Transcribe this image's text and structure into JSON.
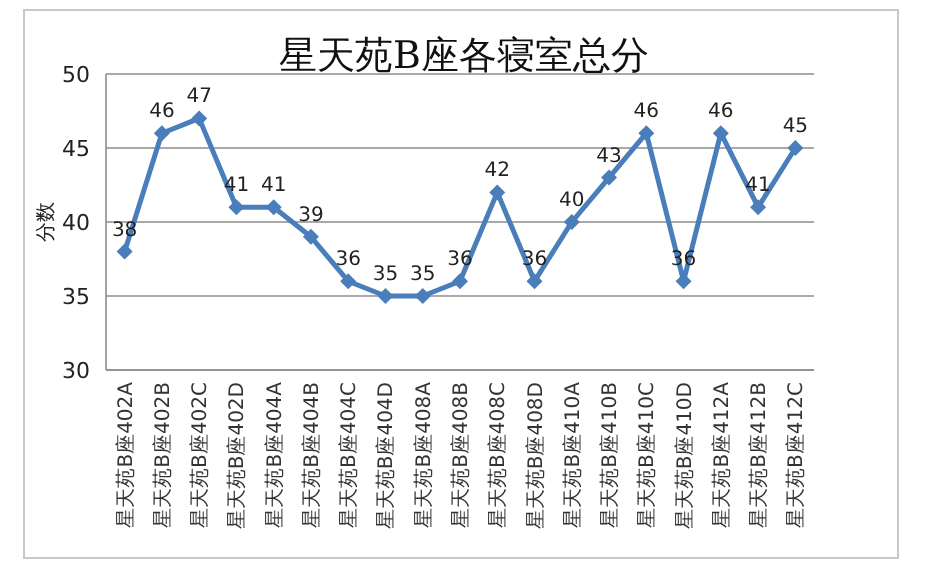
{
  "chart_data": {
    "type": "line",
    "title": "星天苑B座各寝室总分",
    "ylabel": "分数",
    "categories": [
      "星天苑B座402A",
      "星天苑B座402B",
      "星天苑B座402C",
      "星天苑B座402D",
      "星天苑B座404A",
      "星天苑B座404B",
      "星天苑B座404C",
      "星天苑B座404D",
      "星天苑B座408A",
      "星天苑B座408B",
      "星天苑B座408C",
      "星天苑B座408D",
      "星天苑B座410A",
      "星天苑B座410B",
      "星天苑B座410C",
      "星天苑B座410D",
      "星天苑B座412A",
      "星天苑B座412B",
      "星天苑B座412C"
    ],
    "values": [
      38,
      46,
      47,
      41,
      41,
      39,
      36,
      35,
      35,
      36,
      42,
      36,
      40,
      43,
      46,
      36,
      46,
      41,
      45
    ],
    "color": "#4a7ebb",
    "ylim": [
      30,
      50
    ],
    "yticks": [
      30,
      35,
      40,
      45,
      50
    ],
    "grid": "y",
    "marker": "diamond",
    "line_style": "solid",
    "data_labels": true
  }
}
